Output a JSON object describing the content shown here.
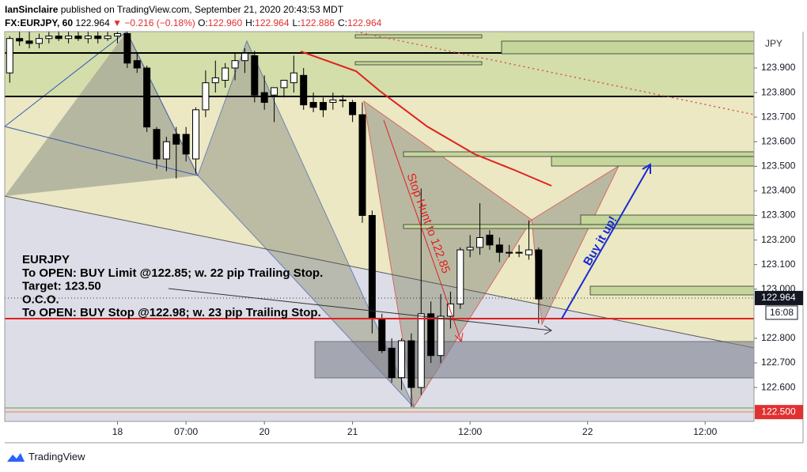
{
  "chart_data": {
    "type": "candlestick",
    "publisher": "IanSinclaire",
    "subtitle": "published on TradingView.com, September 21, 2020 20:43:53 MDT",
    "title": "FX:EURJPY, 60",
    "last": "122.964",
    "change": "▼ −0.216 (−0.18%)",
    "ohlc_header": [
      {
        "key": "O:",
        "value": "122.960"
      },
      {
        "key": "H:",
        "value": "122.964"
      },
      {
        "key": "L:",
        "value": "122.886"
      },
      {
        "key": "C:",
        "value": "122.964"
      }
    ],
    "currency": "JPY",
    "annotations": [
      "EURJPY",
      "To OPEN: BUY Limit @122.85; w. 22 pip Trailing Stop.",
      "Target: 123.50",
      "O.C.O.",
      "To OPEN: BUY Stop @122.98; w. 23 pip Trailing Stop."
    ],
    "stop_hunt": "Stop Hunt to 122.85",
    "buy_note": "Buy it up!",
    "price_labels": [
      {
        "value": 122.964,
        "label": "122.964",
        "color": "#131722"
      },
      {
        "value": 122.5,
        "label": "122.500",
        "color": "#e03030"
      }
    ],
    "countdown": "16:08",
    "brand": "TradingView",
    "up_color": "#ffffff",
    "down_color": "#000000",
    "categories": [
      null,
      null,
      null,
      null,
      null,
      null,
      null,
      null,
      null,
      null,
      null,
      "18",
      null,
      null,
      null,
      null,
      null,
      null,
      "07:00",
      null,
      null,
      null,
      null,
      null,
      null,
      null,
      "20",
      null,
      null,
      null,
      null,
      null,
      null,
      null,
      null,
      "21",
      null,
      null,
      null,
      null,
      null,
      null,
      null,
      null,
      null,
      null,
      null,
      "12:00",
      null,
      null,
      null,
      null,
      null,
      null,
      null,
      null,
      null,
      null,
      null,
      "22",
      null,
      null,
      null,
      null,
      null,
      null,
      null,
      null,
      null,
      null,
      null,
      "12:00",
      null,
      null,
      null,
      null,
      null
    ],
    "open": [
      123.88,
      124.02,
      124.01,
      124.0,
      124.02,
      124.03,
      124.02,
      124.03,
      124.02,
      124.03,
      124.02,
      124.03,
      124.04,
      123.93,
      123.9,
      123.65,
      123.53,
      123.63,
      123.63,
      123.53,
      123.73,
      123.84,
      123.85,
      123.9,
      123.93,
      123.95,
      123.8,
      123.79,
      123.82,
      123.84,
      123.87,
      123.76,
      123.76,
      123.76,
      123.77,
      123.76,
      123.71,
      123.3,
      122.88,
      122.76,
      122.64,
      122.79,
      122.6,
      122.9,
      122.73,
      122.89,
      122.94,
      123.16,
      123.17,
      123.22,
      123.18,
      123.15,
      123.15,
      123.14,
      123.16,
      null,
      null,
      null,
      null,
      null,
      null,
      null,
      null,
      null,
      null,
      null,
      null,
      null,
      null,
      null,
      null,
      null,
      null,
      null,
      null,
      null,
      null
    ],
    "high": [
      124.03,
      124.05,
      124.05,
      124.04,
      124.05,
      124.05,
      124.05,
      124.05,
      124.05,
      124.05,
      124.05,
      124.05,
      124.05,
      123.96,
      123.91,
      123.66,
      123.62,
      123.66,
      123.66,
      123.74,
      123.89,
      123.93,
      123.92,
      123.96,
      123.98,
      123.97,
      123.87,
      123.82,
      123.85,
      123.95,
      123.9,
      123.8,
      123.78,
      123.8,
      123.79,
      123.77,
      123.76,
      123.32,
      122.9,
      122.8,
      122.8,
      122.82,
      123.41,
      122.95,
      122.98,
      122.99,
      123.17,
      123.22,
      123.35,
      123.24,
      123.21,
      123.18,
      123.18,
      123.28,
      123.17,
      null,
      null,
      null,
      null,
      null,
      null,
      null,
      null,
      null,
      null,
      null,
      null,
      null,
      null,
      null,
      null,
      null,
      null,
      null,
      null,
      null,
      null
    ],
    "low": [
      123.84,
      123.99,
      123.98,
      123.98,
      124.0,
      124.01,
      124.0,
      124.01,
      124.0,
      124.0,
      124.01,
      124.0,
      123.9,
      123.88,
      123.64,
      123.49,
      123.48,
      123.45,
      123.52,
      123.47,
      123.7,
      123.8,
      123.82,
      123.85,
      123.88,
      123.76,
      123.73,
      123.68,
      123.78,
      123.8,
      123.73,
      123.72,
      123.7,
      123.73,
      123.74,
      123.68,
      123.27,
      122.82,
      122.74,
      122.62,
      122.59,
      122.52,
      122.57,
      122.7,
      122.7,
      122.84,
      122.92,
      123.13,
      123.14,
      123.16,
      123.11,
      123.13,
      123.13,
      123.12,
      122.86,
      null,
      null,
      null,
      null,
      null,
      null,
      null,
      null,
      null,
      null,
      null,
      null,
      null,
      null,
      null,
      null,
      null,
      null,
      null,
      null,
      null,
      null
    ],
    "close": [
      124.02,
      124.01,
      124.0,
      124.02,
      124.03,
      124.02,
      124.03,
      124.02,
      124.03,
      124.02,
      124.03,
      124.04,
      123.92,
      123.9,
      123.66,
      123.53,
      123.6,
      123.59,
      123.55,
      123.73,
      123.84,
      123.86,
      123.9,
      123.93,
      123.96,
      123.79,
      123.76,
      123.82,
      123.85,
      123.88,
      123.75,
      123.74,
      123.73,
      123.77,
      123.77,
      123.71,
      123.3,
      122.88,
      122.75,
      122.64,
      122.79,
      122.6,
      122.9,
      122.73,
      122.89,
      122.94,
      123.16,
      123.17,
      123.21,
      123.18,
      123.15,
      123.15,
      123.15,
      123.16,
      122.96,
      null,
      null,
      null,
      null,
      null,
      null,
      null,
      null,
      null,
      null,
      null,
      null,
      null,
      null,
      null,
      null,
      null,
      null,
      null,
      null,
      null,
      null
    ],
    "ylim": [
      122.462,
      124.048
    ],
    "yticks": [
      {
        "value": 122.6,
        "label": "122.600"
      },
      {
        "value": 122.7,
        "label": "122.700"
      },
      {
        "value": 122.8,
        "label": "122.800"
      },
      {
        "value": 123.0,
        "label": "123.000"
      },
      {
        "value": 123.1,
        "label": "123.100"
      },
      {
        "value": 123.2,
        "label": "123.200"
      },
      {
        "value": 123.3,
        "label": "123.300"
      },
      {
        "value": 123.4,
        "label": "123.400"
      },
      {
        "value": 123.5,
        "label": "123.500"
      },
      {
        "value": 123.6,
        "label": "123.600"
      },
      {
        "value": 123.7,
        "label": "123.700"
      },
      {
        "value": 123.8,
        "label": "123.800"
      },
      {
        "value": 123.9,
        "label": "123.900"
      }
    ]
  }
}
